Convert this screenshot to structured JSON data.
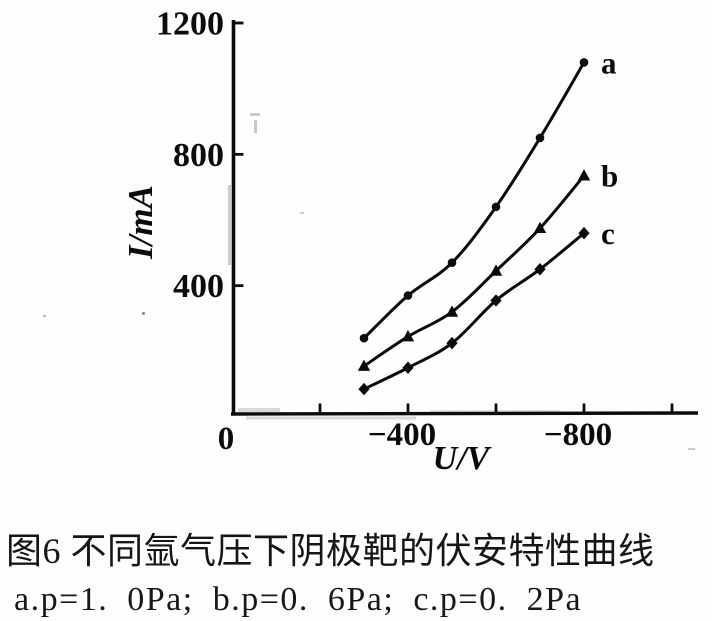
{
  "figure": {
    "caption_title": "图6  不同氩气压下阴极靶的伏安特性曲线",
    "caption_legend": "a.p=1. 0Pa;  b.p=0. 6Pa;  c.p=0. 2Pa"
  },
  "chart_data": {
    "type": "line",
    "title": "",
    "xlabel": "U/V",
    "ylabel": "I/mA",
    "xlim": [
      0,
      -1050
    ],
    "ylim": [
      0,
      1200
    ],
    "grid": false,
    "legend_position": "labels at right end of each curve",
    "x": [
      -300,
      -400,
      -500,
      -600,
      -700,
      -800
    ],
    "series": [
      {
        "name": "a",
        "pressure": "p=1.0Pa",
        "marker": "circle",
        "values": [
          240,
          370,
          470,
          640,
          850,
          1080
        ]
      },
      {
        "name": "b",
        "pressure": "p=0.6Pa",
        "marker": "triangle",
        "values": [
          155,
          245,
          320,
          445,
          575,
          735
        ]
      },
      {
        "name": "c",
        "pressure": "p=0.2Pa",
        "marker": "diamond",
        "values": [
          85,
          150,
          225,
          355,
          450,
          560
        ]
      }
    ],
    "x_ticks": [
      {
        "value": 0,
        "label": "0"
      },
      {
        "value": -200,
        "label": ""
      },
      {
        "value": -400,
        "label": "−400"
      },
      {
        "value": -600,
        "label": ""
      },
      {
        "value": -800,
        "label": "−800"
      },
      {
        "value": -1000,
        "label": ""
      }
    ],
    "y_ticks": [
      {
        "value": 400,
        "label": "400"
      },
      {
        "value": 800,
        "label": "800"
      },
      {
        "value": 1200,
        "label": "1200"
      }
    ]
  }
}
